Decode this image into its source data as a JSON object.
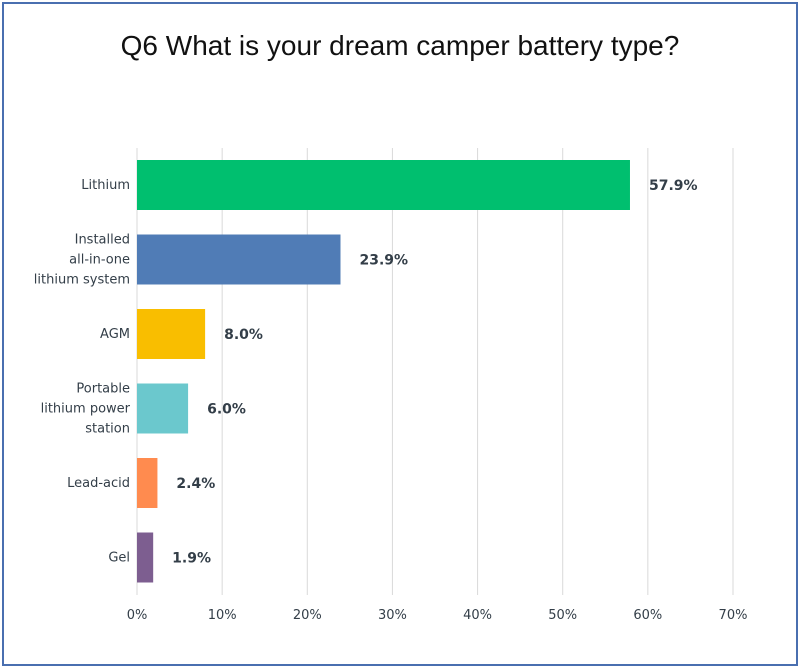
{
  "chart_data": {
    "type": "bar",
    "orientation": "horizontal",
    "title": "Q6 What is your dream camper battery type?",
    "categories": [
      [
        "Lithium"
      ],
      [
        "Installed",
        "all-in-one",
        "lithium system"
      ],
      [
        "AGM"
      ],
      [
        "Portable",
        "lithium power",
        "station"
      ],
      [
        "Lead-acid"
      ],
      [
        "Gel"
      ]
    ],
    "values": [
      57.9,
      23.9,
      8.0,
      6.0,
      2.4,
      1.9
    ],
    "value_labels": [
      "57.9%",
      "23.9%",
      "8.0%",
      "6.0%",
      "2.4%",
      "1.9%"
    ],
    "colors": [
      "#00bf6f",
      "#507cb6",
      "#f9be00",
      "#6bc8cd",
      "#ff8b4f",
      "#7d5e90"
    ],
    "xlim": [
      0,
      70
    ],
    "xticks": [
      "0%",
      "10%",
      "20%",
      "30%",
      "40%",
      "50%",
      "60%",
      "70%"
    ],
    "grid": true,
    "xlabel": "",
    "ylabel": ""
  }
}
